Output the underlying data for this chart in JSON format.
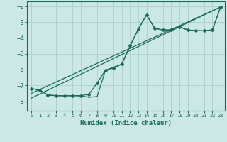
{
  "xlabel": "Humidex (Indice chaleur)",
  "bg_color": "#cce8e4",
  "grid_color": "#aacfcb",
  "line_color": "#1a6b5a",
  "xlim": [
    -0.5,
    23.5
  ],
  "ylim": [
    -8.6,
    -1.7
  ],
  "xticks": [
    0,
    1,
    2,
    3,
    4,
    5,
    6,
    7,
    8,
    9,
    10,
    11,
    12,
    13,
    14,
    15,
    16,
    17,
    18,
    19,
    20,
    21,
    22,
    23
  ],
  "yticks": [
    -8,
    -7,
    -6,
    -5,
    -4,
    -3,
    -2
  ],
  "main_x": [
    0,
    1,
    2,
    3,
    4,
    5,
    6,
    7,
    8,
    9,
    10,
    11,
    12,
    13,
    14,
    15,
    16,
    17,
    18,
    19,
    20,
    21,
    22,
    23
  ],
  "main_y": [
    -7.2,
    -7.3,
    -7.6,
    -7.65,
    -7.65,
    -7.65,
    -7.65,
    -7.55,
    -6.85,
    -6.05,
    -5.9,
    -5.65,
    -4.5,
    -3.45,
    -2.55,
    -3.4,
    -3.5,
    -3.5,
    -3.3,
    -3.5,
    -3.55,
    -3.55,
    -3.5,
    -2.05
  ],
  "line2_x": [
    0,
    1,
    2,
    3,
    4,
    5,
    6,
    7,
    8,
    9,
    10,
    11,
    12,
    13,
    14,
    15,
    16,
    17,
    18,
    19,
    20,
    21,
    22,
    23
  ],
  "line2_y": [
    -7.2,
    -7.3,
    -7.6,
    -7.65,
    -7.65,
    -7.65,
    -7.65,
    -7.75,
    -7.7,
    -6.05,
    -5.85,
    -5.65,
    -4.5,
    -3.45,
    -2.55,
    -3.4,
    -3.5,
    -3.5,
    -3.3,
    -3.5,
    -3.55,
    -3.55,
    -3.5,
    -2.05
  ],
  "trend1_x": [
    0,
    23
  ],
  "trend1_y": [
    -7.5,
    -2.05
  ],
  "trend2_x": [
    0,
    23
  ],
  "trend2_y": [
    -7.8,
    -2.05
  ]
}
